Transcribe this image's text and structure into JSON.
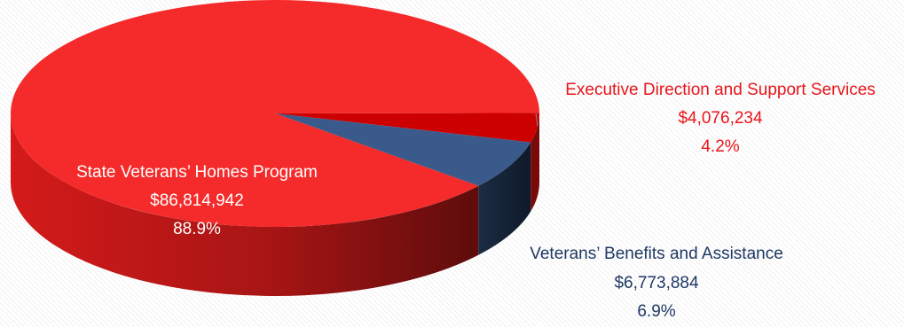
{
  "chart_data": {
    "type": "pie",
    "title": "",
    "legend": "none",
    "slices": [
      {
        "label": "State Veterans’ Homes Program",
        "value": 86814942,
        "value_text": "$86,814,942",
        "percent_text": "88.9%",
        "percent": 88.9,
        "color": "#f52a2a",
        "label_color": "#ffffff"
      },
      {
        "label": "Veterans’ Benefits and Assistance",
        "value": 6773884,
        "value_text": "$6,773,884",
        "percent_text": "6.9%",
        "percent": 6.9,
        "color": "#3a5a8c",
        "label_color": "#1f3864"
      },
      {
        "label": "Executive Direction and Support Services",
        "value": 4076234,
        "value_text": "$4,076,234",
        "percent_text": "4.2%",
        "percent": 4.2,
        "color": "#cc0000",
        "label_color": "#e8151b"
      }
    ]
  }
}
